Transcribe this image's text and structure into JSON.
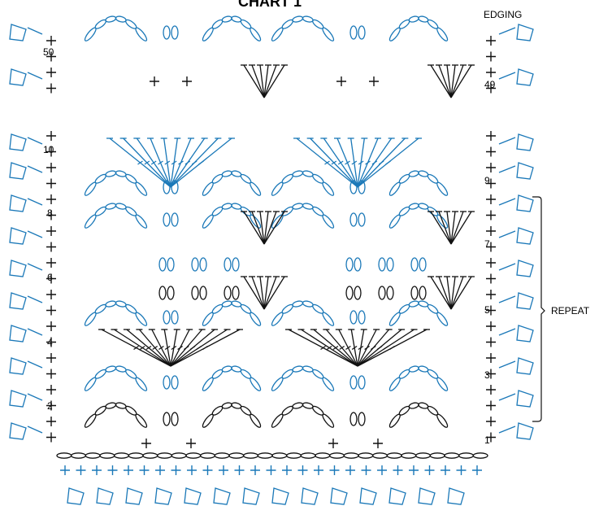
{
  "title": "CHART 1",
  "edging_label": "EDGING",
  "repeat_label": "REPEAT",
  "row_numbers_left": [
    "50",
    "10",
    "8",
    "6",
    "4",
    "2"
  ],
  "row_numbers_right": [
    "49",
    "9",
    "7",
    "5",
    "3",
    "1"
  ],
  "colors": {
    "blue": "#1a78b8",
    "black": "#111111"
  }
}
